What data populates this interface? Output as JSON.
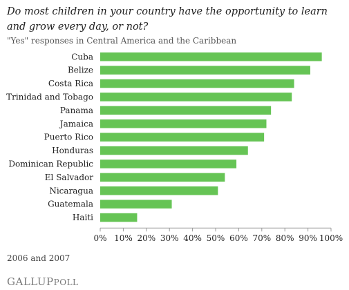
{
  "chart_data": {
    "type": "bar",
    "orientation": "horizontal",
    "title": "Do most children in your country have the opportunity to learn and grow every day, or not?",
    "subtitle": "\"Yes\" responses in Central America and the Caribbean",
    "categories": [
      "Cuba",
      "Belize",
      "Costa Rica",
      "Trinidad and Tobago",
      "Panama",
      "Jamaica",
      "Puerto Rico",
      "Honduras",
      "Dominican Republic",
      "El Salvador",
      "Nicaragua",
      "Guatemala",
      "Haiti"
    ],
    "values": [
      96,
      91,
      84,
      83,
      74,
      72,
      71,
      64,
      59,
      54,
      51,
      31,
      16
    ],
    "xlim": [
      0,
      100
    ],
    "xticks": [
      "0%",
      "10%",
      "20%",
      "30%",
      "40%",
      "50%",
      "60%",
      "70%",
      "80%",
      "90%",
      "100%"
    ],
    "bar_color": "#66c455",
    "grid": false
  },
  "footnote": "2006 and 2007",
  "logo": {
    "gallup": "GALLUP",
    "poll": "POLL"
  }
}
